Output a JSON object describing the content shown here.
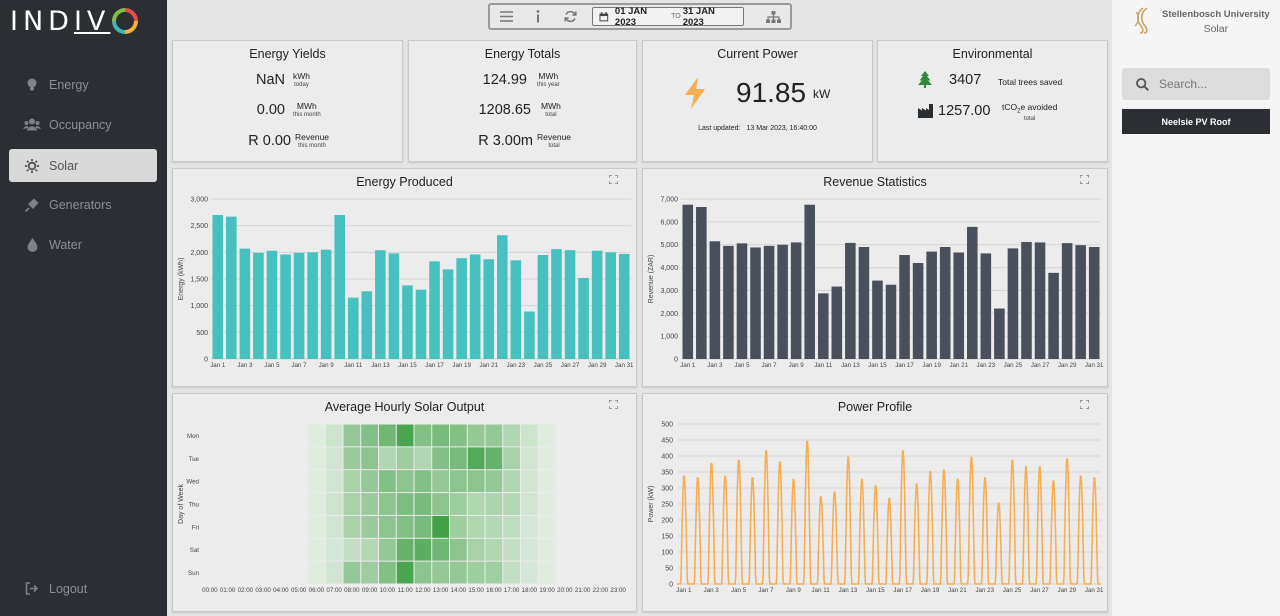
{
  "app": {
    "logo_text": "INDIV"
  },
  "sidebar": {
    "items": [
      {
        "label": "Energy",
        "icon": "bulb-icon"
      },
      {
        "label": "Occupancy",
        "icon": "users-icon"
      },
      {
        "label": "Solar",
        "icon": "sun-icon",
        "active": true
      },
      {
        "label": "Generators",
        "icon": "plug-icon"
      },
      {
        "label": "Water",
        "icon": "drop-icon"
      }
    ],
    "logout": "Logout"
  },
  "toolbar": {
    "date_start": "01 JAN 2023",
    "date_to": "TO",
    "date_end": "31 JAN 2023"
  },
  "energy_yields": {
    "title": "Energy Yields",
    "rows": [
      {
        "value": "NaN",
        "unit": "kWh",
        "sub": "today"
      },
      {
        "value": "0.00",
        "unit": "MWh",
        "sub": "this month"
      },
      {
        "value": "R 0.00",
        "unit": "Revenue",
        "sub": "this month"
      }
    ]
  },
  "energy_totals": {
    "title": "Energy Totals",
    "rows": [
      {
        "value": "124.99",
        "unit": "MWh",
        "sub": "this year"
      },
      {
        "value": "1208.65",
        "unit": "MWh",
        "sub": "total"
      },
      {
        "value": "R 3.00m",
        "unit": "Revenue",
        "sub": "total"
      }
    ]
  },
  "current_power": {
    "title": "Current Power",
    "value": "91.85",
    "unit": "kW",
    "updated_label": "Last updated:",
    "updated_value": "13 Mar 2023, 16:40:00"
  },
  "environmental": {
    "title": "Environmental",
    "trees_value": "3407",
    "trees_label": "Total trees saved",
    "co2_value": "1257.00",
    "co2_label_a": "tCO",
    "co2_label_sub": "2",
    "co2_label_b": "e avoided",
    "co2_sub": "total"
  },
  "right_panel": {
    "university": "Stellenbosch University",
    "section": "Solar",
    "search_placeholder": "Search...",
    "site": "Neelsie PV Roof"
  },
  "chart_data": [
    {
      "id": "energy",
      "type": "bar",
      "title": "Energy Produced",
      "ylabel": "Energy (kWh)",
      "color": "#47c1bf",
      "ylim": [
        0,
        3000
      ],
      "yticks": [
        "0",
        "500",
        "1,000",
        "1,500",
        "2,000",
        "2,500",
        "3,000"
      ],
      "categories": [
        "Jan 1",
        "Jan 2",
        "Jan 3",
        "Jan 4",
        "Jan 5",
        "Jan 6",
        "Jan 7",
        "Jan 8",
        "Jan 9",
        "Jan 10",
        "Jan 11",
        "Jan 12",
        "Jan 13",
        "Jan 14",
        "Jan 15",
        "Jan 16",
        "Jan 17",
        "Jan 18",
        "Jan 19",
        "Jan 20",
        "Jan 21",
        "Jan 22",
        "Jan 23",
        "Jan 24",
        "Jan 25",
        "Jan 26",
        "Jan 27",
        "Jan 28",
        "Jan 29",
        "Jan 30",
        "Jan 31"
      ],
      "xtick_labels": [
        "Jan 1",
        "Jan 3",
        "Jan 5",
        "Jan 7",
        "Jan 9",
        "Jan 11",
        "Jan 13",
        "Jan 15",
        "Jan 17",
        "Jan 19",
        "Jan 21",
        "Jan 23",
        "Jan 25",
        "Jan 27",
        "Jan 29",
        "Jan 31"
      ],
      "values": [
        2700,
        2670,
        2070,
        1990,
        2030,
        1960,
        1990,
        2000,
        2050,
        2700,
        1150,
        1270,
        2040,
        1980,
        1380,
        1300,
        1830,
        1680,
        1890,
        1960,
        1870,
        2320,
        1850,
        890,
        1950,
        2060,
        2040,
        1520,
        2030,
        2000,
        1970
      ]
    },
    {
      "id": "revenue",
      "type": "bar",
      "title": "Revenue Statistics",
      "ylabel": "Revenue (ZAR)",
      "color": "#4a4f5c",
      "ylim": [
        0,
        7000
      ],
      "yticks": [
        "0",
        "1,000",
        "2,000",
        "3,000",
        "4,000",
        "5,000",
        "6,000",
        "7,000"
      ],
      "categories": [
        "Jan 1",
        "Jan 2",
        "Jan 3",
        "Jan 4",
        "Jan 5",
        "Jan 6",
        "Jan 7",
        "Jan 8",
        "Jan 9",
        "Jan 10",
        "Jan 11",
        "Jan 12",
        "Jan 13",
        "Jan 14",
        "Jan 15",
        "Jan 16",
        "Jan 17",
        "Jan 18",
        "Jan 19",
        "Jan 20",
        "Jan 21",
        "Jan 22",
        "Jan 23",
        "Jan 24",
        "Jan 25",
        "Jan 26",
        "Jan 27",
        "Jan 28",
        "Jan 29",
        "Jan 30",
        "Jan 31"
      ],
      "xtick_labels": [
        "Jan 1",
        "Jan 3",
        "Jan 5",
        "Jan 7",
        "Jan 9",
        "Jan 11",
        "Jan 13",
        "Jan 15",
        "Jan 17",
        "Jan 19",
        "Jan 21",
        "Jan 23",
        "Jan 25",
        "Jan 27",
        "Jan 29",
        "Jan 31"
      ],
      "values": [
        6750,
        6650,
        5150,
        4950,
        5060,
        4880,
        4950,
        5000,
        5100,
        6750,
        2870,
        3170,
        5080,
        4900,
        3430,
        3250,
        4550,
        4200,
        4700,
        4900,
        4660,
        5780,
        4620,
        2210,
        4840,
        5120,
        5100,
        3770,
        5070,
        4980,
        4900
      ]
    },
    {
      "id": "heatmap",
      "type": "heatmap",
      "title": "Average Hourly Solar Output",
      "ylabel": "Day of Week",
      "rows": [
        "Mon",
        "Tue",
        "Wed",
        "Thu",
        "Fri",
        "Sat",
        "Sun"
      ],
      "columns": [
        "00:00",
        "01:00",
        "02:00",
        "03:00",
        "04:00",
        "05:00",
        "06:00",
        "07:00",
        "08:00",
        "09:00",
        "10:00",
        "11:00",
        "12:00",
        "13:00",
        "14:00",
        "15:00",
        "16:00",
        "17:00",
        "18:00",
        "19:00",
        "20:00",
        "21:00",
        "22:00",
        "23:00"
      ],
      "values": [
        [
          0,
          0,
          0,
          0,
          0,
          0,
          0.04,
          0.15,
          0.45,
          0.55,
          0.65,
          0.85,
          0.55,
          0.6,
          0.55,
          0.45,
          0.45,
          0.3,
          0.15,
          0.04,
          0,
          0,
          0,
          0
        ],
        [
          0,
          0,
          0,
          0,
          0,
          0,
          0.04,
          0.12,
          0.42,
          0.5,
          0.3,
          0.4,
          0.3,
          0.55,
          0.6,
          0.8,
          0.7,
          0.35,
          0.12,
          0.04,
          0,
          0,
          0,
          0
        ],
        [
          0,
          0,
          0,
          0,
          0,
          0,
          0.04,
          0.12,
          0.35,
          0.45,
          0.55,
          0.5,
          0.55,
          0.45,
          0.5,
          0.5,
          0.45,
          0.3,
          0.12,
          0.04,
          0,
          0,
          0,
          0
        ],
        [
          0,
          0,
          0,
          0,
          0,
          0,
          0.04,
          0.14,
          0.35,
          0.42,
          0.5,
          0.58,
          0.6,
          0.5,
          0.4,
          0.3,
          0.32,
          0.28,
          0.12,
          0.04,
          0,
          0,
          0,
          0
        ],
        [
          0,
          0,
          0,
          0,
          0,
          0,
          0.04,
          0.12,
          0.35,
          0.42,
          0.5,
          0.55,
          0.6,
          0.9,
          0.4,
          0.3,
          0.28,
          0.22,
          0.1,
          0.04,
          0,
          0,
          0,
          0
        ],
        [
          0,
          0,
          0,
          0,
          0,
          0,
          0.04,
          0.1,
          0.2,
          0.28,
          0.45,
          0.7,
          0.75,
          0.65,
          0.5,
          0.35,
          0.3,
          0.2,
          0.1,
          0.04,
          0,
          0,
          0,
          0
        ],
        [
          0,
          0,
          0,
          0,
          0,
          0,
          0.04,
          0.12,
          0.45,
          0.4,
          0.55,
          0.85,
          0.5,
          0.45,
          0.45,
          0.4,
          0.38,
          0.2,
          0.1,
          0.04,
          0,
          0,
          0,
          0
        ]
      ]
    },
    {
      "id": "power",
      "type": "line",
      "title": "Power Profile",
      "ylabel": "Power (kW)",
      "color": "#f7ae52",
      "ylim": [
        0,
        500
      ],
      "yticks": [
        "0",
        "50",
        "100",
        "150",
        "200",
        "250",
        "300",
        "350",
        "400",
        "450",
        "500"
      ],
      "xtick_labels": [
        "Jan 1",
        "Jan 3",
        "Jan 5",
        "Jan 7",
        "Jan 9",
        "Jan 11",
        "Jan 13",
        "Jan 15",
        "Jan 17",
        "Jan 19",
        "Jan 21",
        "Jan 23",
        "Jan 25",
        "Jan 27",
        "Jan 29",
        "Jan 31"
      ],
      "daily_peaks": [
        340,
        335,
        380,
        340,
        390,
        335,
        420,
        385,
        330,
        450,
        275,
        290,
        400,
        330,
        310,
        270,
        420,
        315,
        355,
        360,
        330,
        400,
        335,
        255,
        390,
        370,
        370,
        325,
        395,
        340,
        335
      ]
    }
  ]
}
